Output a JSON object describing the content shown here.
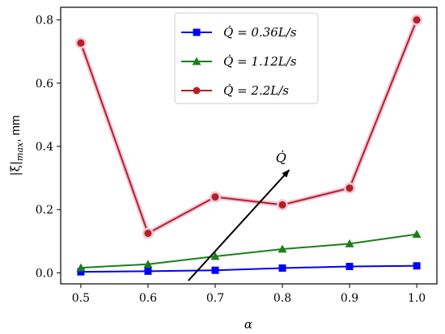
{
  "chart_data": {
    "type": "line",
    "x": [
      0.5,
      0.6,
      0.7,
      0.8,
      0.9,
      1.0
    ],
    "series": [
      {
        "name": "Q̇ = 0.36L/s",
        "color": "#0000ff",
        "marker": "square",
        "values": [
          0.003,
          0.005,
          0.008,
          0.015,
          0.02,
          0.022
        ]
      },
      {
        "name": "Q̇ = 1.12L/s",
        "color": "#1a7f1a",
        "marker": "triangle",
        "values": [
          0.016,
          0.027,
          0.052,
          0.075,
          0.092,
          0.122
        ]
      },
      {
        "name": "Q̇ = 2.2L/s",
        "color": "#b22222",
        "marker": "circle",
        "values": [
          0.727,
          0.125,
          0.24,
          0.215,
          0.268,
          0.8
        ]
      }
    ],
    "xlabel": "α",
    "ylabel": "|ξ|max, mm",
    "ylabel_main": "|ξ|",
    "ylabel_sub": "max",
    "ylabel_unit": ", mm",
    "xlim": [
      0.47,
      1.03
    ],
    "ylim": [
      -0.035,
      0.84
    ],
    "xticks": [
      "0.5",
      "0.6",
      "0.7",
      "0.8",
      "0.9",
      "1.0"
    ],
    "yticks": [
      "0.0",
      "0.2",
      "0.4",
      "0.6",
      "0.8"
    ],
    "legend_position": "top-center",
    "annotation": {
      "text": "Q̇",
      "from": [
        0.66,
        -0.025
      ],
      "to": [
        0.81,
        0.325
      ]
    },
    "grid": false
  }
}
